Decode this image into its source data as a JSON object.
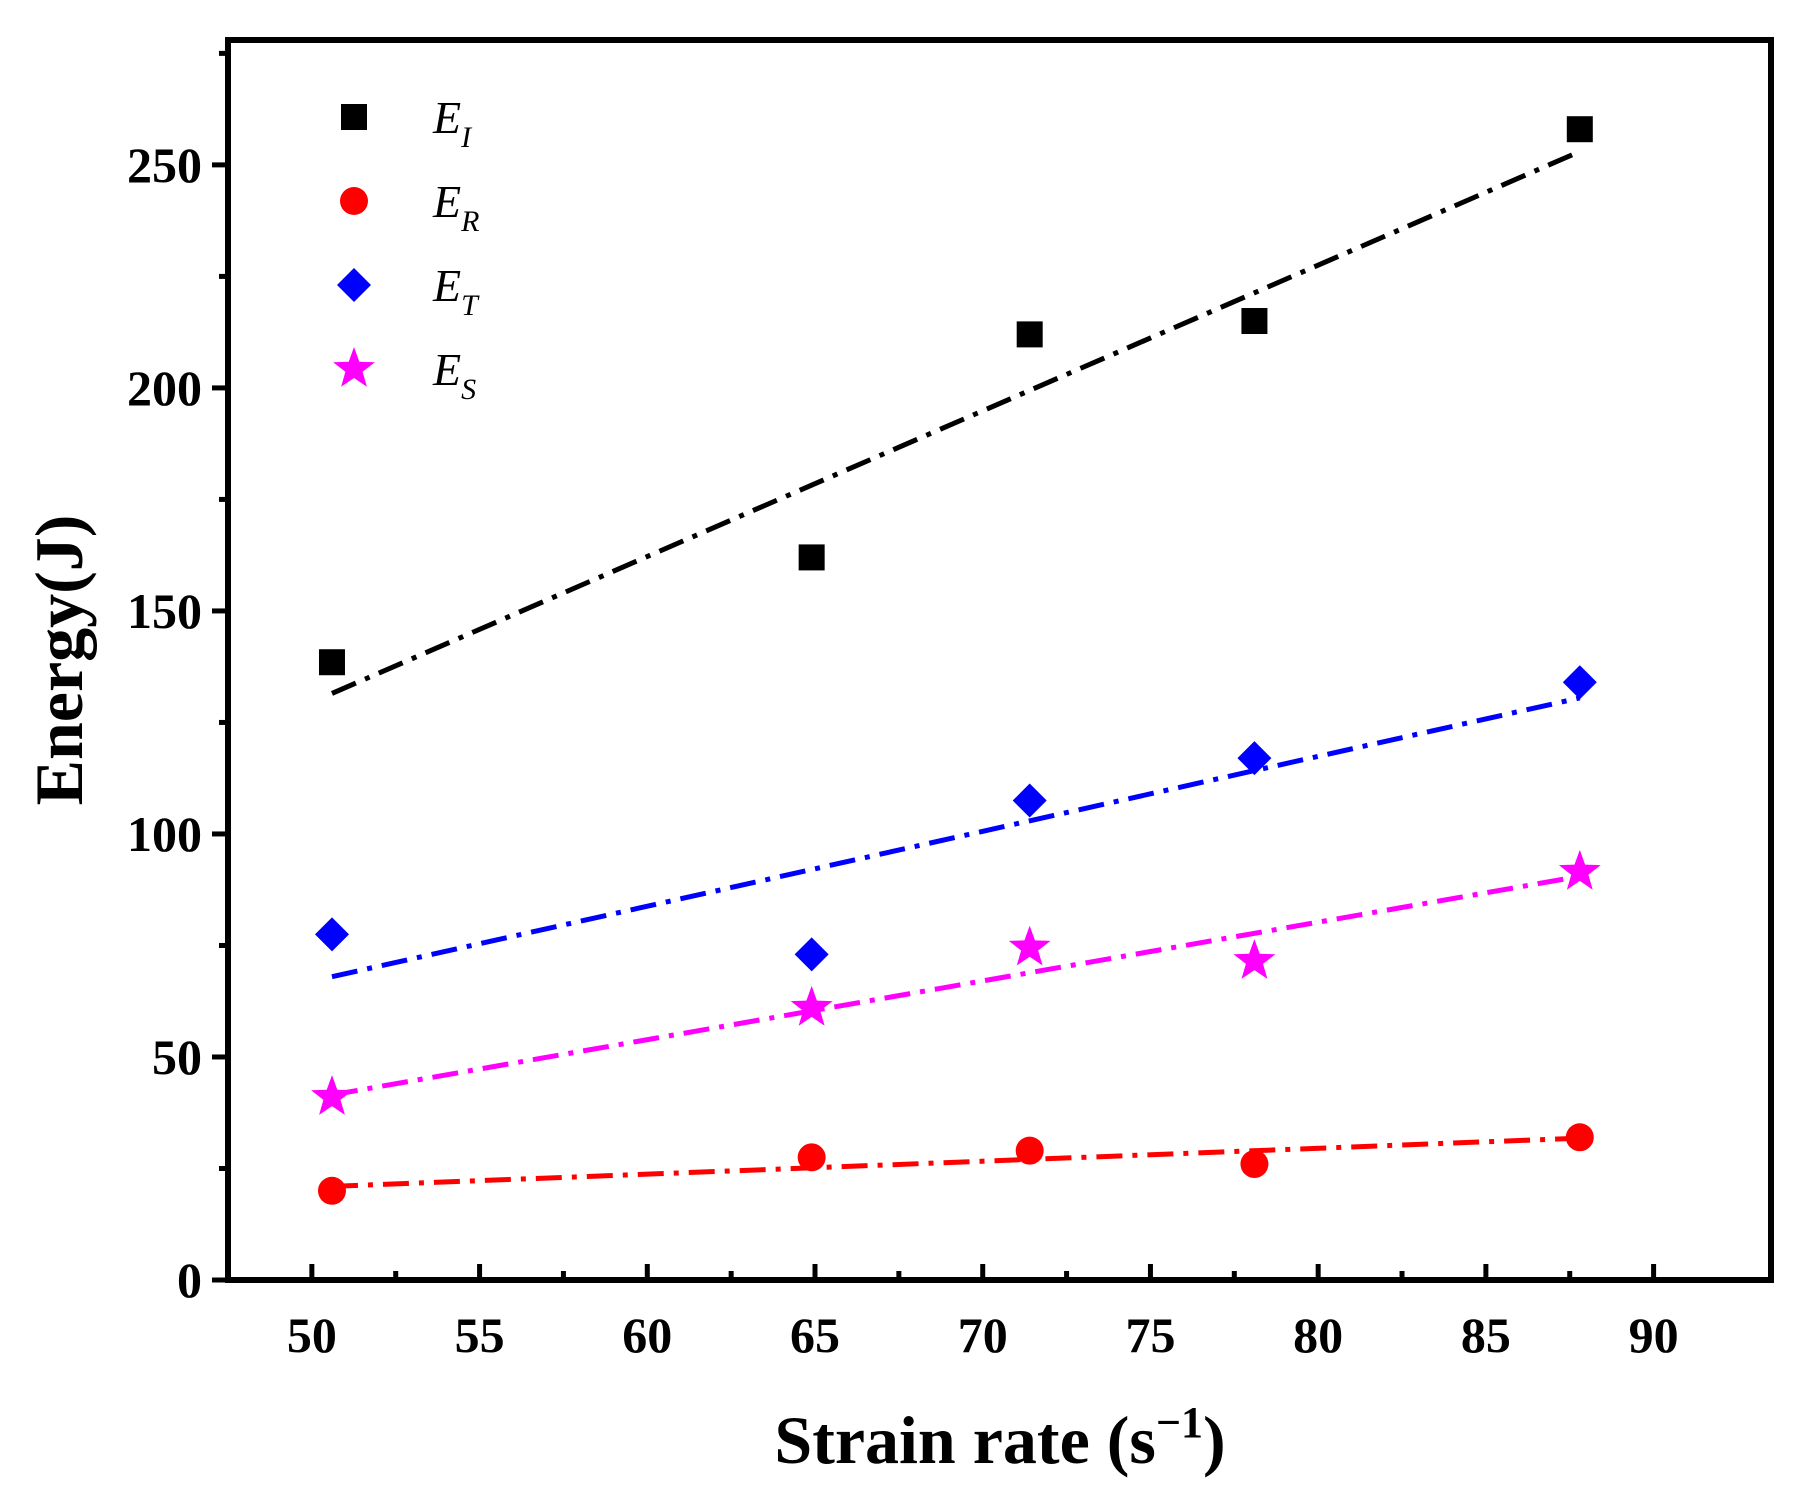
{
  "chart_data": {
    "type": "scatter",
    "xlabel": "Strain rate (s",
    "xlabel_sup": "−1",
    "xlabel_close": ")",
    "ylabel": "Energy(J)",
    "xlim": [
      47.5,
      93.5
    ],
    "ylim": [
      0,
      278
    ],
    "x_ticks": [
      50,
      55,
      60,
      65,
      70,
      75,
      80,
      85,
      90
    ],
    "y_ticks": [
      0,
      50,
      100,
      150,
      200,
      250
    ],
    "x_tick_labels": [
      "50",
      "55",
      "60",
      "65",
      "70",
      "75",
      "80",
      "85",
      "90"
    ],
    "y_tick_labels": [
      "0",
      "50",
      "100",
      "150",
      "200",
      "250"
    ],
    "legend_position": "top-left",
    "series": [
      {
        "name": "E_I",
        "label_main": "E",
        "label_sub": "I",
        "marker": "square",
        "color": "#000000",
        "x": [
          50.6,
          64.9,
          71.4,
          78.1,
          87.8
        ],
        "y": [
          138.5,
          162.0,
          212.0,
          215.0,
          258.0
        ],
        "fit": [
          [
            50.6,
            131.5
          ],
          [
            87.8,
            253.0
          ]
        ]
      },
      {
        "name": "E_R",
        "label_main": "E",
        "label_sub": "R",
        "marker": "circle",
        "color": "#ff0000",
        "x": [
          50.6,
          64.9,
          71.4,
          78.1,
          87.8
        ],
        "y": [
          20.0,
          27.5,
          29.0,
          26.0,
          32.0
        ],
        "fit": [
          [
            50.6,
            21.0
          ],
          [
            87.8,
            31.8
          ]
        ]
      },
      {
        "name": "E_T",
        "label_main": "E",
        "label_sub": "T",
        "marker": "diamond",
        "color": "#0000ff",
        "x": [
          50.6,
          64.9,
          71.4,
          78.1,
          87.8
        ],
        "y": [
          77.5,
          73.0,
          107.5,
          117.0,
          134.0
        ],
        "fit": [
          [
            50.6,
            68.0
          ],
          [
            87.8,
            130.5
          ]
        ]
      },
      {
        "name": "E_S",
        "label_main": "E",
        "label_sub": "S",
        "marker": "star",
        "color": "#ff00ff",
        "x": [
          50.6,
          64.9,
          71.4,
          78.1,
          87.8
        ],
        "y": [
          41.0,
          61.0,
          74.5,
          71.5,
          91.5
        ],
        "fit": [
          [
            50.6,
            41.5
          ],
          [
            87.8,
            90.5
          ]
        ]
      }
    ]
  }
}
